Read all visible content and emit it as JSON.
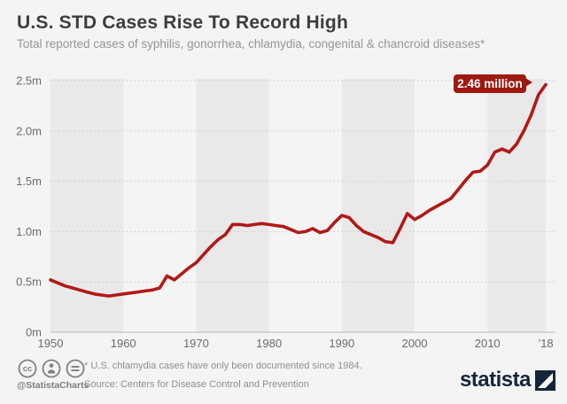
{
  "header": {
    "title": "U.S. STD Cases Rise To Record High",
    "subtitle": "Total reported cases of syphilis, gonorrhea, chlamydia, congenital & chancroid diseases*"
  },
  "chart": {
    "callout_label": "2.46 million",
    "y_ticks": [
      {
        "label": "2.5m",
        "value": 2.5
      },
      {
        "label": "2.0m",
        "value": 2.0
      },
      {
        "label": "1.5m",
        "value": 1.5
      },
      {
        "label": "1.0m",
        "value": 1.0
      },
      {
        "label": "0.5m",
        "value": 0.5
      },
      {
        "label": "0m",
        "value": 0
      }
    ],
    "x_ticks": [
      {
        "label": "1950",
        "year": 1950
      },
      {
        "label": "1960",
        "year": 1960
      },
      {
        "label": "1970",
        "year": 1970
      },
      {
        "label": "1980",
        "year": 1980
      },
      {
        "label": "1990",
        "year": 1990
      },
      {
        "label": "2000",
        "year": 2000
      },
      {
        "label": "2010",
        "year": 2010
      },
      {
        "label": "’18",
        "year": 2018
      }
    ]
  },
  "chart_data": {
    "type": "line",
    "title": "U.S. STD Cases Rise To Record High",
    "subtitle": "Total reported cases of syphilis, gonorrhea, chlamydia, congenital & chancroid diseases",
    "unit": "million cases",
    "ylim": [
      0,
      2.5
    ],
    "grid": "horizontal-dotted",
    "decade_bands": [
      [
        1950,
        1960
      ],
      [
        1970,
        1980
      ],
      [
        1990,
        2000
      ],
      [
        2010,
        2018
      ]
    ],
    "annotation": {
      "text": "2.46 million",
      "year": 2018,
      "value": 2.46
    },
    "x": [
      1950,
      1951,
      1952,
      1953,
      1954,
      1955,
      1956,
      1957,
      1958,
      1959,
      1960,
      1961,
      1962,
      1963,
      1964,
      1965,
      1966,
      1967,
      1968,
      1969,
      1970,
      1971,
      1972,
      1973,
      1974,
      1975,
      1976,
      1977,
      1978,
      1979,
      1980,
      1981,
      1982,
      1983,
      1984,
      1985,
      1986,
      1987,
      1988,
      1989,
      1990,
      1991,
      1992,
      1993,
      1994,
      1995,
      1996,
      1997,
      1998,
      1999,
      2000,
      2001,
      2002,
      2003,
      2004,
      2005,
      2006,
      2007,
      2008,
      2009,
      2010,
      2011,
      2012,
      2013,
      2014,
      2015,
      2016,
      2017,
      2018
    ],
    "values": [
      0.52,
      0.49,
      0.46,
      0.44,
      0.42,
      0.4,
      0.38,
      0.37,
      0.36,
      0.37,
      0.38,
      0.39,
      0.4,
      0.41,
      0.42,
      0.44,
      0.56,
      0.52,
      0.58,
      0.64,
      0.69,
      0.77,
      0.85,
      0.92,
      0.97,
      1.07,
      1.07,
      1.06,
      1.07,
      1.08,
      1.07,
      1.06,
      1.05,
      1.02,
      0.99,
      1.0,
      1.03,
      0.99,
      1.01,
      1.09,
      1.16,
      1.14,
      1.06,
      1.0,
      0.97,
      0.94,
      0.9,
      0.89,
      1.03,
      1.18,
      1.12,
      1.16,
      1.21,
      1.25,
      1.29,
      1.33,
      1.42,
      1.51,
      1.59,
      1.6,
      1.66,
      1.79,
      1.82,
      1.79,
      1.87,
      2.0,
      2.16,
      2.36,
      2.46
    ]
  },
  "footer": {
    "handle": "@StatistaCharts",
    "footnote": "* U.S. chlamydia cases have only been documented since 1984.",
    "source": "Source: Centers for Disease Control and Prevention",
    "logo_text": "statista",
    "license_icons": [
      "cc-icon",
      "attribution-person-icon",
      "no-derivatives-icon"
    ]
  },
  "colors": {
    "page_background": "#f4f4f4",
    "decade_band": "#e9e9e9",
    "gridline": "#c9c9c9",
    "axis_line": "#c5c5c5",
    "tick_text": "#6b6b6b",
    "title_text": "#3d3d3d",
    "subtitle_text": "#959595",
    "line": "#b11917",
    "callout_background": "#9e1a11",
    "callout_text": "#ffffff",
    "footer_text": "#8f8f8f",
    "logo_navy": "#15253b"
  }
}
